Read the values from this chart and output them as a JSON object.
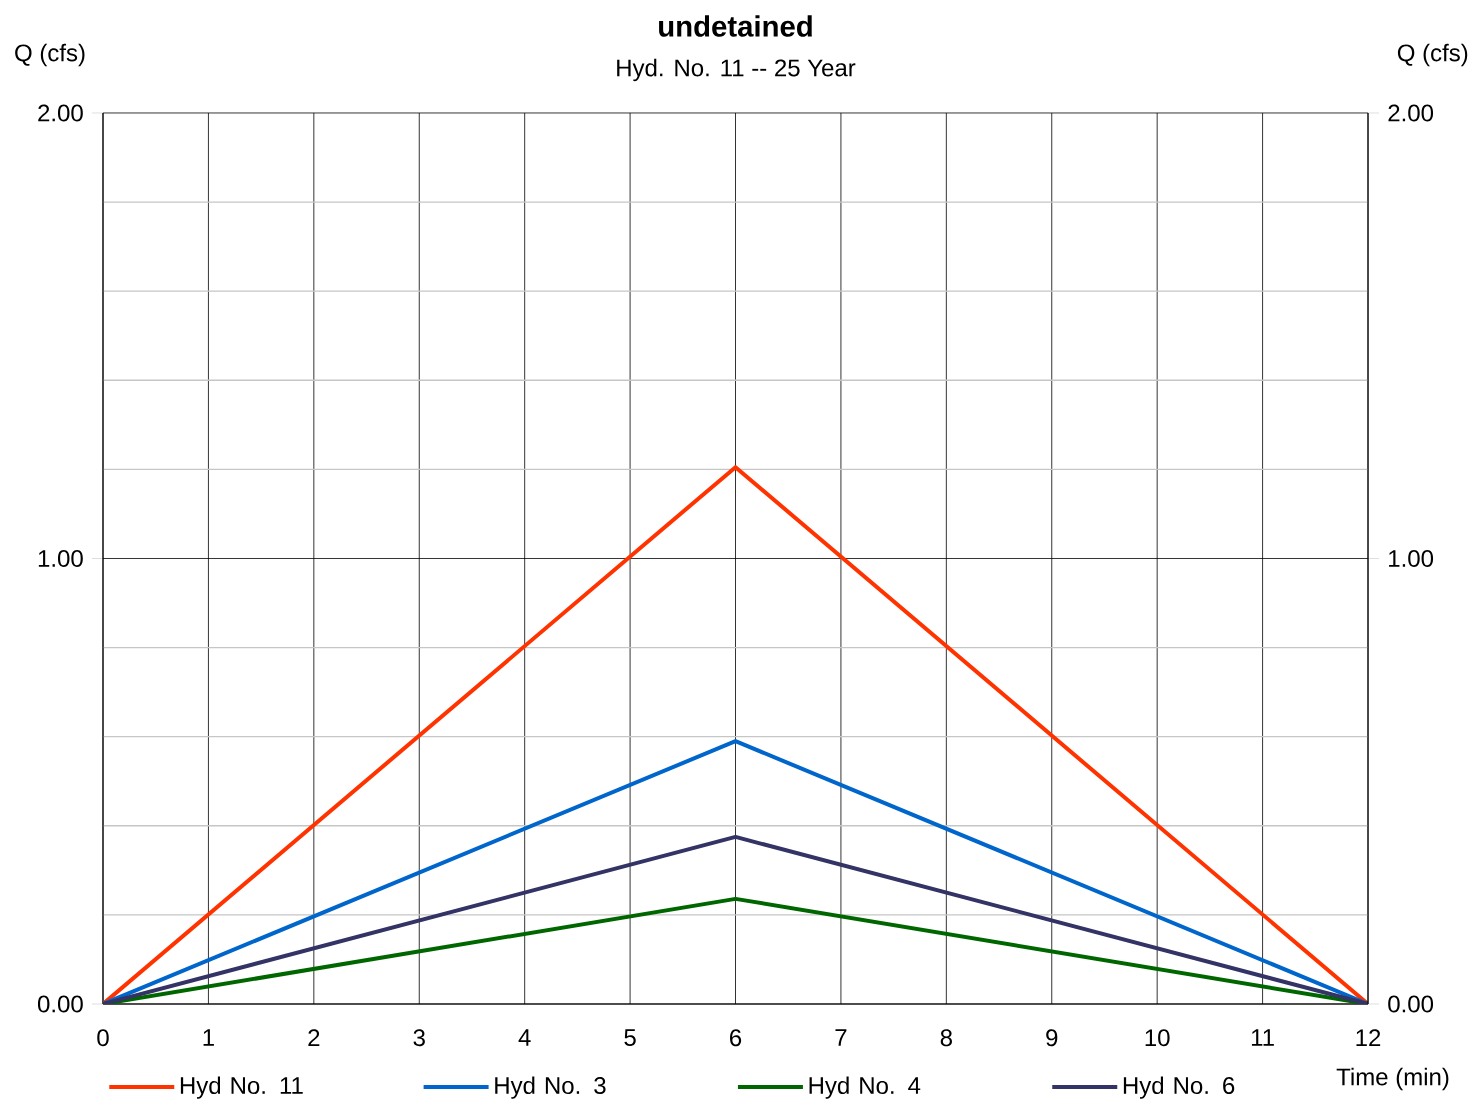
{
  "chart_data": {
    "type": "line",
    "title": "undetained",
    "subtitle": "Hyd. No. 11 -- 25 Year",
    "xlabel": "Time (min)",
    "ylabel": "Q (cfs)",
    "y2label": "Q (cfs)",
    "x": [
      0,
      6,
      12
    ],
    "series": [
      {
        "name": "Hyd No. 11",
        "color": "#ff3300",
        "values": [
          0,
          1.205,
          0
        ]
      },
      {
        "name": "Hyd No. 3",
        "color": "#0066cc",
        "values": [
          0,
          0.59,
          0
        ]
      },
      {
        "name": "Hyd No. 4",
        "color": "#006600",
        "values": [
          0,
          0.236,
          0
        ]
      },
      {
        "name": "Hyd No. 6",
        "color": "#333366",
        "values": [
          0,
          0.375,
          0
        ]
      }
    ],
    "xlim": [
      0,
      12
    ],
    "xticks": [
      0,
      1,
      2,
      3,
      4,
      5,
      6,
      7,
      8,
      9,
      10,
      11,
      12
    ],
    "ylim": [
      0,
      2
    ],
    "yticks": [
      {
        "value": 0,
        "label": "0.00"
      },
      {
        "value": 0.2,
        "label": null
      },
      {
        "value": 0.4,
        "label": null
      },
      {
        "value": 0.6,
        "label": null
      },
      {
        "value": 0.8,
        "label": null
      },
      {
        "value": 1,
        "label": "1.00"
      },
      {
        "value": 1.2,
        "label": null
      },
      {
        "value": 1.4,
        "label": null
      },
      {
        "value": 1.6,
        "label": null
      },
      {
        "value": 1.8,
        "label": null
      },
      {
        "value": 2,
        "label": "2.00"
      }
    ],
    "y2lim": [
      0,
      2
    ],
    "y2ticks": [
      {
        "value": 0,
        "label": "0.00"
      },
      {
        "value": 1,
        "label": "1.00"
      },
      {
        "value": 2,
        "label": "2.00"
      }
    ],
    "grid": true,
    "legend": "bottom",
    "line_style": "solid"
  }
}
